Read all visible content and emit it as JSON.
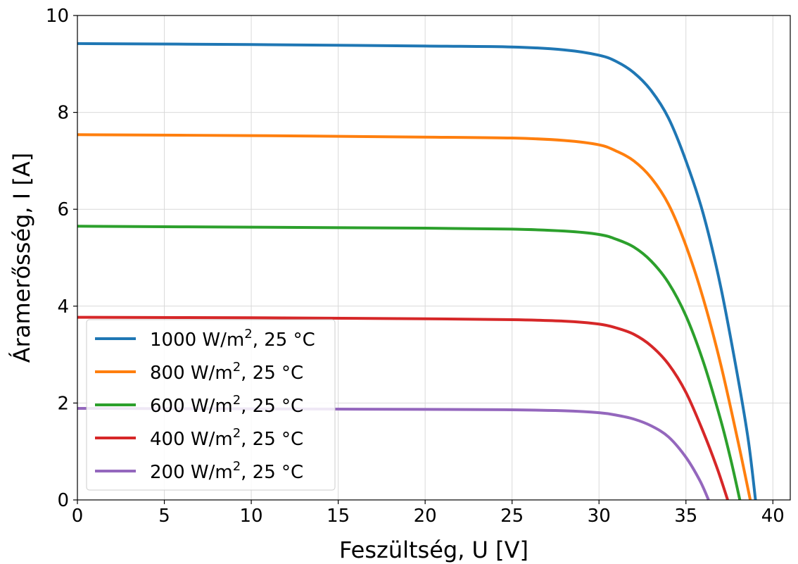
{
  "chart_data": {
    "type": "line",
    "title": "",
    "xlabel": "Feszültség, U [V]",
    "ylabel": "Áramerősség, I [A]",
    "xlim": [
      0,
      41
    ],
    "ylim": [
      0,
      10
    ],
    "xticks": [
      0,
      5,
      10,
      15,
      20,
      25,
      30,
      35,
      40
    ],
    "yticks": [
      0,
      2,
      4,
      6,
      8,
      10
    ],
    "grid": true,
    "legend_position": "bottom-left",
    "series": [
      {
        "name": "1000 W/m², 25 °C",
        "label_main": "1000 W/m",
        "label_sup": "2",
        "label_tail": ", 25 °C",
        "color": "#1f77b4",
        "x": [
          0,
          10,
          20,
          25,
          28,
          30,
          31,
          32,
          33,
          34,
          35,
          36,
          37,
          38,
          38.6,
          39.0
        ],
        "y": [
          9.42,
          9.4,
          9.37,
          9.35,
          9.29,
          9.18,
          9.05,
          8.82,
          8.45,
          7.88,
          7.0,
          5.9,
          4.4,
          2.5,
          1.2,
          0
        ]
      },
      {
        "name": "800 W/m², 25 °C",
        "label_main": "800 W/m",
        "label_sup": "2",
        "label_tail": ", 25 °C",
        "color": "#ff7f0e",
        "x": [
          0,
          10,
          20,
          25,
          28,
          30,
          31,
          32,
          33,
          34,
          35,
          36,
          37,
          38,
          38.7
        ],
        "y": [
          7.54,
          7.52,
          7.49,
          7.47,
          7.42,
          7.33,
          7.2,
          7.0,
          6.65,
          6.1,
          5.25,
          4.15,
          2.8,
          1.2,
          0
        ]
      },
      {
        "name": "600 W/m², 25 °C",
        "label_main": "600 W/m",
        "label_sup": "2",
        "label_tail": ", 25 °C",
        "color": "#2ca02c",
        "x": [
          0,
          10,
          20,
          25,
          28,
          30,
          31,
          32,
          33,
          34,
          35,
          36,
          37,
          37.6,
          38.1
        ],
        "y": [
          5.65,
          5.63,
          5.61,
          5.59,
          5.55,
          5.48,
          5.38,
          5.22,
          4.93,
          4.48,
          3.8,
          2.85,
          1.65,
          0.8,
          0
        ]
      },
      {
        "name": "400 W/m², 25 °C",
        "label_main": "400 W/m",
        "label_sup": "2",
        "label_tail": ", 25 °C",
        "color": "#d62728",
        "x": [
          0,
          10,
          20,
          25,
          28,
          30,
          31,
          32,
          33,
          34,
          35,
          36,
          36.8,
          37.4
        ],
        "y": [
          3.77,
          3.76,
          3.74,
          3.72,
          3.69,
          3.63,
          3.55,
          3.42,
          3.18,
          2.8,
          2.22,
          1.4,
          0.65,
          0
        ]
      },
      {
        "name": "200 W/m², 25 °C",
        "label_main": "200 W/m",
        "label_sup": "2",
        "label_tail": ", 25 °C",
        "color": "#9467bd",
        "x": [
          0,
          10,
          20,
          25,
          28,
          30,
          31,
          32,
          33,
          34,
          35,
          35.8,
          36.3
        ],
        "y": [
          1.89,
          1.88,
          1.87,
          1.86,
          1.84,
          1.8,
          1.75,
          1.67,
          1.53,
          1.3,
          0.88,
          0.4,
          0
        ]
      }
    ]
  }
}
